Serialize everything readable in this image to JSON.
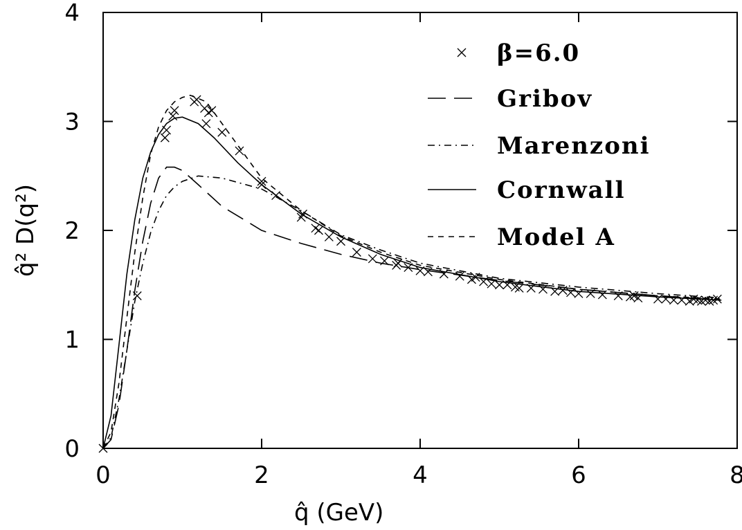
{
  "chart_data": {
    "type": "line",
    "xlabel": "q̂ (GeV)",
    "ylabel": "q̂² D(q²)",
    "xlim": [
      0,
      8
    ],
    "ylim": [
      0,
      4
    ],
    "xticks": [
      "0",
      "2",
      "4",
      "6",
      "8"
    ],
    "yticks": [
      "0",
      "1",
      "2",
      "3",
      "4"
    ],
    "grid": false,
    "legend_position": "top-right",
    "series": [
      {
        "name": "β=6.0",
        "style": "x-markers",
        "points": [
          [
            0.0,
            0.0
          ],
          [
            0.43,
            1.4
          ],
          [
            0.78,
            2.85
          ],
          [
            0.8,
            2.92
          ],
          [
            0.88,
            3.05
          ],
          [
            0.9,
            3.1
          ],
          [
            1.15,
            3.18
          ],
          [
            1.18,
            3.2
          ],
          [
            1.28,
            3.12
          ],
          [
            1.33,
            3.08
          ],
          [
            1.37,
            3.1
          ],
          [
            1.3,
            2.98
          ],
          [
            1.5,
            2.9
          ],
          [
            1.72,
            2.73
          ],
          [
            2.0,
            2.45
          ],
          [
            2.0,
            2.42
          ],
          [
            2.18,
            2.32
          ],
          [
            2.5,
            2.12
          ],
          [
            2.52,
            2.15
          ],
          [
            2.68,
            2.02
          ],
          [
            2.72,
            2.0
          ],
          [
            2.85,
            1.94
          ],
          [
            3.0,
            1.9
          ],
          [
            3.2,
            1.8
          ],
          [
            3.4,
            1.74
          ],
          [
            3.55,
            1.72
          ],
          [
            3.7,
            1.68
          ],
          [
            3.72,
            1.7
          ],
          [
            3.85,
            1.66
          ],
          [
            4.0,
            1.63
          ],
          [
            4.1,
            1.62
          ],
          [
            4.3,
            1.6
          ],
          [
            4.5,
            1.58
          ],
          [
            4.65,
            1.55
          ],
          [
            4.7,
            1.57
          ],
          [
            4.8,
            1.53
          ],
          [
            4.9,
            1.51
          ],
          [
            5.0,
            1.5
          ],
          [
            5.1,
            1.5
          ],
          [
            5.2,
            1.48
          ],
          [
            5.25,
            1.47
          ],
          [
            5.4,
            1.47
          ],
          [
            5.55,
            1.46
          ],
          [
            5.7,
            1.44
          ],
          [
            5.8,
            1.45
          ],
          [
            5.9,
            1.43
          ],
          [
            6.0,
            1.42
          ],
          [
            6.15,
            1.42
          ],
          [
            6.3,
            1.41
          ],
          [
            6.5,
            1.4
          ],
          [
            6.65,
            1.39
          ],
          [
            6.7,
            1.4
          ],
          [
            6.75,
            1.38
          ],
          [
            7.0,
            1.37
          ],
          [
            7.1,
            1.37
          ],
          [
            7.2,
            1.36
          ],
          [
            7.3,
            1.36
          ],
          [
            7.4,
            1.35
          ],
          [
            7.45,
            1.37
          ],
          [
            7.5,
            1.36
          ],
          [
            7.55,
            1.35
          ],
          [
            7.6,
            1.36
          ],
          [
            7.65,
            1.35
          ],
          [
            7.7,
            1.36
          ],
          [
            7.75,
            1.37
          ]
        ]
      },
      {
        "name": "Gribov",
        "style": "long-dash",
        "points": [
          [
            0.0,
            0.0
          ],
          [
            0.1,
            0.08
          ],
          [
            0.2,
            0.4
          ],
          [
            0.3,
            0.9
          ],
          [
            0.4,
            1.45
          ],
          [
            0.5,
            1.9
          ],
          [
            0.6,
            2.25
          ],
          [
            0.7,
            2.48
          ],
          [
            0.8,
            2.58
          ],
          [
            0.9,
            2.58
          ],
          [
            1.0,
            2.55
          ],
          [
            1.2,
            2.42
          ],
          [
            1.5,
            2.22
          ],
          [
            2.0,
            2.0
          ],
          [
            2.5,
            1.88
          ],
          [
            3.0,
            1.78
          ],
          [
            3.5,
            1.7
          ],
          [
            4.0,
            1.64
          ],
          [
            5.0,
            1.54
          ],
          [
            6.0,
            1.46
          ],
          [
            7.0,
            1.4
          ],
          [
            7.8,
            1.36
          ]
        ]
      },
      {
        "name": "Marenzoni",
        "style": "dash-dot",
        "points": [
          [
            0.0,
            0.0
          ],
          [
            0.1,
            0.1
          ],
          [
            0.2,
            0.45
          ],
          [
            0.3,
            0.9
          ],
          [
            0.4,
            1.35
          ],
          [
            0.5,
            1.7
          ],
          [
            0.6,
            1.98
          ],
          [
            0.7,
            2.18
          ],
          [
            0.8,
            2.32
          ],
          [
            0.9,
            2.4
          ],
          [
            1.0,
            2.45
          ],
          [
            1.2,
            2.5
          ],
          [
            1.5,
            2.48
          ],
          [
            2.0,
            2.38
          ],
          [
            2.5,
            2.18
          ],
          [
            3.0,
            1.96
          ],
          [
            3.5,
            1.82
          ],
          [
            4.0,
            1.7
          ],
          [
            5.0,
            1.56
          ],
          [
            6.0,
            1.48
          ],
          [
            7.0,
            1.42
          ],
          [
            7.8,
            1.38
          ]
        ]
      },
      {
        "name": "Cornwall",
        "style": "solid",
        "points": [
          [
            0.0,
            0.0
          ],
          [
            0.1,
            0.3
          ],
          [
            0.2,
            0.95
          ],
          [
            0.3,
            1.6
          ],
          [
            0.4,
            2.1
          ],
          [
            0.5,
            2.48
          ],
          [
            0.6,
            2.72
          ],
          [
            0.7,
            2.88
          ],
          [
            0.8,
            2.98
          ],
          [
            0.9,
            3.03
          ],
          [
            1.0,
            3.04
          ],
          [
            1.2,
            2.98
          ],
          [
            1.4,
            2.85
          ],
          [
            1.7,
            2.62
          ],
          [
            2.0,
            2.42
          ],
          [
            2.5,
            2.15
          ],
          [
            3.0,
            1.94
          ],
          [
            3.5,
            1.78
          ],
          [
            4.0,
            1.66
          ],
          [
            5.0,
            1.53
          ],
          [
            6.0,
            1.44
          ],
          [
            7.0,
            1.39
          ],
          [
            7.8,
            1.36
          ]
        ]
      },
      {
        "name": "Model A",
        "style": "short-dash",
        "points": [
          [
            0.0,
            0.0
          ],
          [
            0.1,
            0.15
          ],
          [
            0.2,
            0.6
          ],
          [
            0.3,
            1.2
          ],
          [
            0.4,
            1.8
          ],
          [
            0.5,
            2.3
          ],
          [
            0.6,
            2.7
          ],
          [
            0.7,
            2.95
          ],
          [
            0.8,
            3.1
          ],
          [
            0.9,
            3.18
          ],
          [
            1.0,
            3.22
          ],
          [
            1.1,
            3.24
          ],
          [
            1.3,
            3.18
          ],
          [
            1.5,
            2.98
          ],
          [
            1.8,
            2.68
          ],
          [
            2.0,
            2.48
          ],
          [
            2.5,
            2.18
          ],
          [
            3.0,
            1.95
          ],
          [
            3.5,
            1.8
          ],
          [
            4.0,
            1.68
          ],
          [
            5.0,
            1.55
          ],
          [
            6.0,
            1.46
          ],
          [
            7.0,
            1.4
          ],
          [
            7.8,
            1.37
          ]
        ]
      }
    ],
    "legend": {
      "entries": [
        "β=6.0",
        "Gribov",
        "Marenzoni",
        "Cornwall",
        "Model A"
      ]
    }
  }
}
